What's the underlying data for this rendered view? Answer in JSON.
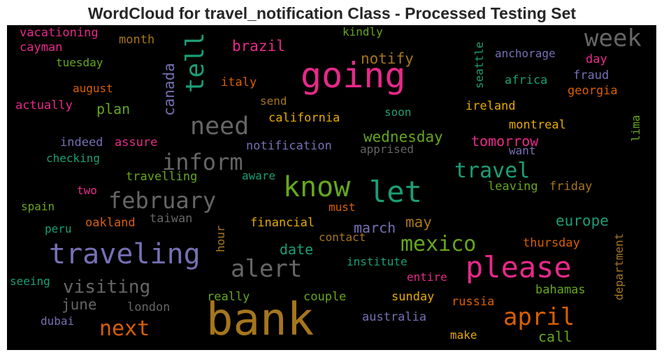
{
  "chart_data": {
    "type": "wordcloud",
    "title": "WordCloud for travel_notification Class - Processed Testing Set",
    "background": "#000000",
    "palette": {
      "green": "#1b9e77",
      "orange": "#d95f02",
      "purple": "#7570b3",
      "pink": "#e7298a",
      "lime": "#66a61e",
      "gold": "#e6ab02",
      "brown": "#a6761d",
      "gray": "#666666"
    },
    "words": [
      {
        "text": "bank",
        "color": "#a6761d"
      },
      {
        "text": "going",
        "color": "#e7298a"
      },
      {
        "text": "know",
        "color": "#66a61e"
      },
      {
        "text": "let",
        "color": "#1b9e77"
      },
      {
        "text": "please",
        "color": "#e7298a"
      },
      {
        "text": "traveling",
        "color": "#7570b3"
      },
      {
        "text": "tell",
        "color": "#1b9e77"
      },
      {
        "text": "need",
        "color": "#666666"
      },
      {
        "text": "inform",
        "color": "#666666"
      },
      {
        "text": "february",
        "color": "#666666"
      },
      {
        "text": "alert",
        "color": "#666666"
      },
      {
        "text": "week",
        "color": "#666666"
      },
      {
        "text": "travel",
        "color": "#1b9e77"
      },
      {
        "text": "april",
        "color": "#d95f02"
      },
      {
        "text": "mexico",
        "color": "#66a61e"
      },
      {
        "text": "next",
        "color": "#d95f02"
      },
      {
        "text": "visiting",
        "color": "#666666"
      },
      {
        "text": "canada",
        "color": "#7570b3"
      },
      {
        "text": "brazil",
        "color": "#e7298a"
      },
      {
        "text": "notify",
        "color": "#a6761d"
      },
      {
        "text": "plan",
        "color": "#66a61e"
      },
      {
        "text": "wednesday",
        "color": "#66a61e"
      },
      {
        "text": "tomorrow",
        "color": "#e7298a"
      },
      {
        "text": "june",
        "color": "#666666"
      },
      {
        "text": "march",
        "color": "#7570b3"
      },
      {
        "text": "date",
        "color": "#1b9e77"
      },
      {
        "text": "may",
        "color": "#a6761d"
      },
      {
        "text": "europe",
        "color": "#1b9e77"
      },
      {
        "text": "call",
        "color": "#66a61e"
      },
      {
        "text": "vacationing",
        "color": "#e7298a"
      },
      {
        "text": "cayman",
        "color": "#e7298a"
      },
      {
        "text": "month",
        "color": "#a6761d"
      },
      {
        "text": "kindly",
        "color": "#66a61e"
      },
      {
        "text": "tuesday",
        "color": "#66a61e"
      },
      {
        "text": "august",
        "color": "#d95f02"
      },
      {
        "text": "actually",
        "color": "#e7298a"
      },
      {
        "text": "italy",
        "color": "#d95f02"
      },
      {
        "text": "send",
        "color": "#a6761d"
      },
      {
        "text": "california",
        "color": "#e6ab02"
      },
      {
        "text": "soon",
        "color": "#1b9e77"
      },
      {
        "text": "seattle",
        "color": "#1b9e77"
      },
      {
        "text": "anchorage",
        "color": "#7570b3"
      },
      {
        "text": "africa",
        "color": "#1b9e77"
      },
      {
        "text": "day",
        "color": "#e7298a"
      },
      {
        "text": "fraud",
        "color": "#7570b3"
      },
      {
        "text": "georgia",
        "color": "#d95f02"
      },
      {
        "text": "ireland",
        "color": "#e6ab02"
      },
      {
        "text": "montreal",
        "color": "#e6ab02"
      },
      {
        "text": "lima",
        "color": "#66a61e"
      },
      {
        "text": "want",
        "color": "#7570b3"
      },
      {
        "text": "indeed",
        "color": "#7570b3"
      },
      {
        "text": "assure",
        "color": "#e7298a"
      },
      {
        "text": "notification",
        "color": "#7570b3"
      },
      {
        "text": "apprised",
        "color": "#666666"
      },
      {
        "text": "checking",
        "color": "#1b9e77"
      },
      {
        "text": "travelling",
        "color": "#66a61e"
      },
      {
        "text": "aware",
        "color": "#1b9e77"
      },
      {
        "text": "leaving",
        "color": "#66a61e"
      },
      {
        "text": "friday",
        "color": "#a6761d"
      },
      {
        "text": "two",
        "color": "#e7298a"
      },
      {
        "text": "spain",
        "color": "#66a61e"
      },
      {
        "text": "must",
        "color": "#d95f02"
      },
      {
        "text": "taiwan",
        "color": "#666666"
      },
      {
        "text": "peru",
        "color": "#1b9e77"
      },
      {
        "text": "oakland",
        "color": "#d95f02"
      },
      {
        "text": "financial",
        "color": "#e6ab02"
      },
      {
        "text": "hour",
        "color": "#a6761d"
      },
      {
        "text": "contact",
        "color": "#a6761d"
      },
      {
        "text": "department",
        "color": "#a6761d"
      },
      {
        "text": "thursday",
        "color": "#d95f02"
      },
      {
        "text": "institute",
        "color": "#1b9e77"
      },
      {
        "text": "seeing",
        "color": "#1b9e77"
      },
      {
        "text": "entire",
        "color": "#e7298a"
      },
      {
        "text": "bahamas",
        "color": "#66a61e"
      },
      {
        "text": "really",
        "color": "#66a61e"
      },
      {
        "text": "couple",
        "color": "#66a61e"
      },
      {
        "text": "sunday",
        "color": "#e6ab02"
      },
      {
        "text": "russia",
        "color": "#d95f02"
      },
      {
        "text": "london",
        "color": "#666666"
      },
      {
        "text": "dubai",
        "color": "#7570b3"
      },
      {
        "text": "australia",
        "color": "#7570b3"
      },
      {
        "text": "make",
        "color": "#e6ab02"
      }
    ]
  }
}
